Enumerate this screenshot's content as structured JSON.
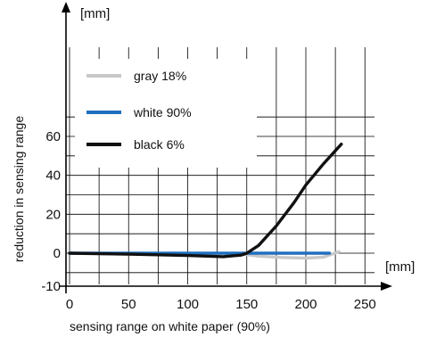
{
  "chart_data": {
    "type": "line",
    "title": "",
    "xlabel": "sensing range on white paper (90%)",
    "ylabel": "reduction in sensing range",
    "x_unit": "[mm]",
    "y_unit": "[mm]",
    "xlim": [
      0,
      250
    ],
    "ylim": [
      -10,
      70
    ],
    "x_ticks": [
      0,
      50,
      100,
      150,
      200,
      250
    ],
    "y_ticks": [
      -10,
      0,
      20,
      40,
      60
    ],
    "x_tick_labels": [
      "0",
      "50",
      "100",
      "150",
      "200",
      "250"
    ],
    "y_tick_labels": [
      "-10",
      "0",
      "20",
      "40",
      "60"
    ],
    "grid": true,
    "legend_position": "top-left",
    "series": [
      {
        "name": "gray 18%",
        "color": "#c8c8c8",
        "x": [
          0,
          50,
          100,
          140,
          160,
          180,
          200,
          215,
          228
        ],
        "y": [
          0,
          -0.5,
          -0.8,
          0,
          -1.5,
          -2.2,
          -2.5,
          -2.0,
          0.8
        ]
      },
      {
        "name": "white 90%",
        "color": "#1f6fbf",
        "x": [
          0,
          50,
          100,
          150,
          200,
          220
        ],
        "y": [
          0,
          0,
          0,
          0,
          0,
          0
        ]
      },
      {
        "name": "black 6%",
        "color": "#111111",
        "x": [
          0,
          50,
          100,
          130,
          145,
          150,
          160,
          175,
          190,
          200,
          215,
          230
        ],
        "y": [
          0,
          -0.5,
          -1.2,
          -1.8,
          -1.0,
          0,
          4,
          14,
          26,
          35,
          46,
          56
        ]
      }
    ]
  }
}
